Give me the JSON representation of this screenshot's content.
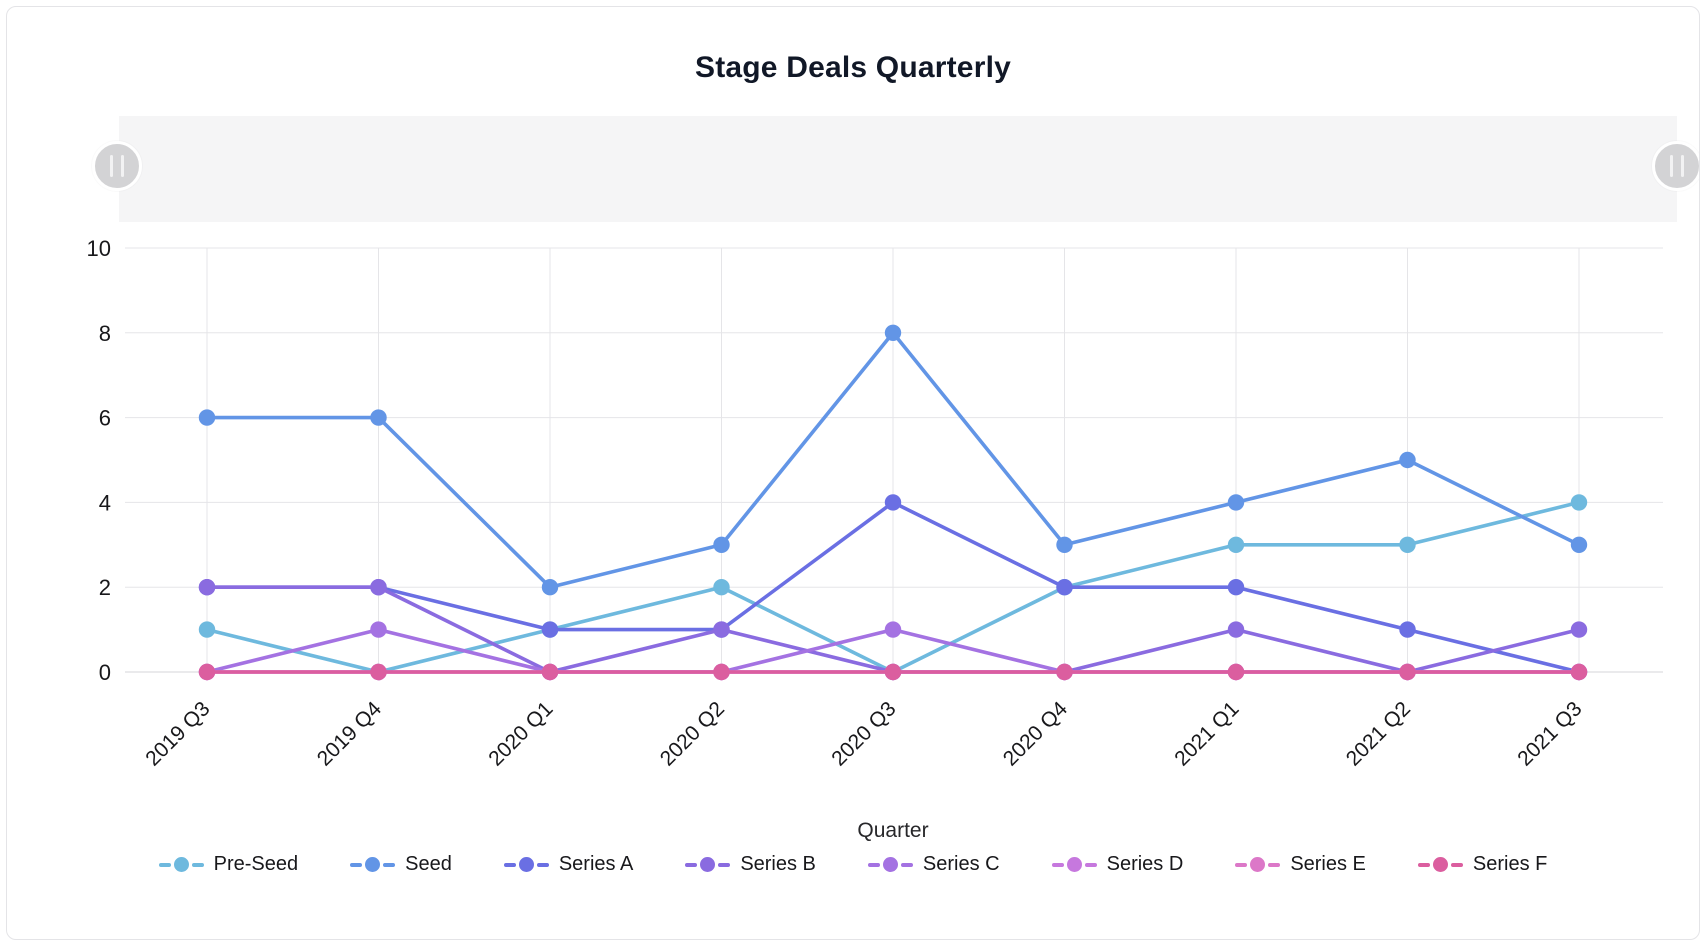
{
  "card": {
    "title": "Stage Deals Quarterly"
  },
  "brush": {
    "left_handle_icon": "pause-bars-icon",
    "right_handle_icon": "pause-bars-icon",
    "track_color": "#f5f5f6",
    "handle_color": "#d3d3d5"
  },
  "chart_data": {
    "type": "line",
    "title": "Stage Deals Quarterly",
    "xlabel": "Quarter",
    "ylabel": "",
    "ylim": [
      0,
      10
    ],
    "yticks": [
      0,
      2,
      4,
      6,
      8,
      10
    ],
    "grid": true,
    "legend_position": "bottom",
    "x_tick_rotation": -45,
    "categories": [
      "2019 Q3",
      "2019 Q4",
      "2020 Q1",
      "2020 Q2",
      "2020 Q3",
      "2020 Q4",
      "2021 Q1",
      "2021 Q2",
      "2021 Q3"
    ],
    "series": [
      {
        "name": "Pre-Seed",
        "color": "#6eb9de",
        "values": [
          1,
          0,
          1,
          2,
          0,
          2,
          3,
          3,
          4
        ]
      },
      {
        "name": "Seed",
        "color": "#6295e6",
        "values": [
          6,
          6,
          2,
          3,
          8,
          3,
          4,
          5,
          3
        ]
      },
      {
        "name": "Series A",
        "color": "#6a6fe3",
        "values": [
          2,
          2,
          1,
          1,
          4,
          2,
          2,
          1,
          0
        ]
      },
      {
        "name": "Series B",
        "color": "#8a6be0",
        "values": [
          2,
          2,
          0,
          1,
          0,
          0,
          1,
          0,
          1
        ]
      },
      {
        "name": "Series C",
        "color": "#a472e2",
        "values": [
          0,
          1,
          0,
          0,
          1,
          0,
          0,
          0,
          0
        ]
      },
      {
        "name": "Series D",
        "color": "#c678de",
        "values": [
          0,
          0,
          0,
          0,
          0,
          0,
          0,
          0,
          0
        ]
      },
      {
        "name": "Series E",
        "color": "#dc78c8",
        "values": [
          0,
          0,
          0,
          0,
          0,
          0,
          0,
          0,
          0
        ]
      },
      {
        "name": "Series F",
        "color": "#db5e9f",
        "values": [
          0,
          0,
          0,
          0,
          0,
          0,
          0,
          0,
          0
        ]
      }
    ],
    "grid_color": "#e5e5e8",
    "axis_label_color": "#18181b"
  }
}
